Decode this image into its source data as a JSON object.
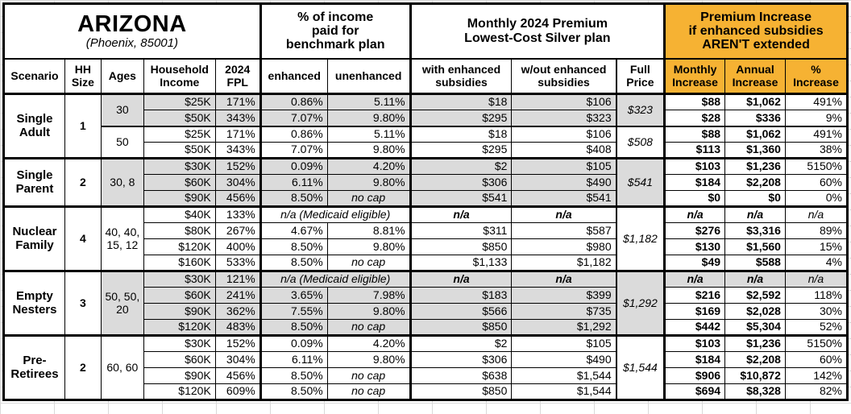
{
  "title": {
    "state": "ARIZONA",
    "location": "(Phoenix, 85001)"
  },
  "sections": {
    "benchmark": "% of income\npaid for\nbenchmark plan",
    "premium": "Monthly 2024 Premium\nLowest-Cost Silver plan",
    "increase": "Premium Increase\nif enhanced subsidies\nAREN'T extended"
  },
  "columns": {
    "scenario": "Scenario",
    "hh_size": "HH\nSize",
    "ages": "Ages",
    "income": "Household\nIncome",
    "fpl": "2024\nFPL",
    "enhanced": "enhanced",
    "unenhanced": "unenhanced",
    "with_sub": "with enhanced\nsubsidies",
    "without_sub": "w/out enhanced\nsubsidies",
    "full_price": "Full\nPrice",
    "monthly": "Monthly\nIncrease",
    "annual": "Annual\nIncrease",
    "pct": "%\nIncrease"
  },
  "colors": {
    "highlight": "#F6B233",
    "row_shade": "#DBDBDB",
    "border": "#000000"
  },
  "blocks": [
    {
      "scenario": "Single\nAdult",
      "hh_size": "1",
      "subgroups": [
        {
          "ages": "30",
          "shaded": true,
          "full_price": "$323",
          "rows": [
            {
              "income": "$25K",
              "fpl": "171%",
              "enhanced": "0.86%",
              "unenhanced": "5.11%",
              "with_sub": "$18",
              "without_sub": "$106",
              "monthly": "$88",
              "annual": "$1,062",
              "pct": "491%"
            },
            {
              "income": "$50K",
              "fpl": "343%",
              "enhanced": "7.07%",
              "unenhanced": "9.80%",
              "with_sub": "$295",
              "without_sub": "$323",
              "monthly": "$28",
              "annual": "$336",
              "pct": "9%"
            }
          ]
        },
        {
          "ages": "50",
          "shaded": false,
          "full_price": "$508",
          "rows": [
            {
              "income": "$25K",
              "fpl": "171%",
              "enhanced": "0.86%",
              "unenhanced": "5.11%",
              "with_sub": "$18",
              "without_sub": "$106",
              "monthly": "$88",
              "annual": "$1,062",
              "pct": "491%"
            },
            {
              "income": "$50K",
              "fpl": "343%",
              "enhanced": "7.07%",
              "unenhanced": "9.80%",
              "with_sub": "$295",
              "without_sub": "$408",
              "monthly": "$113",
              "annual": "$1,360",
              "pct": "38%"
            }
          ]
        }
      ]
    },
    {
      "scenario": "Single\nParent",
      "hh_size": "2",
      "subgroups": [
        {
          "ages": "30, 8",
          "shaded": true,
          "full_price": "$541",
          "rows": [
            {
              "income": "$30K",
              "fpl": "152%",
              "enhanced": "0.09%",
              "unenhanced": "4.20%",
              "with_sub": "$2",
              "without_sub": "$105",
              "monthly": "$103",
              "annual": "$1,236",
              "pct": "5150%"
            },
            {
              "income": "$60K",
              "fpl": "304%",
              "enhanced": "6.11%",
              "unenhanced": "9.80%",
              "with_sub": "$306",
              "without_sub": "$490",
              "monthly": "$184",
              "annual": "$2,208",
              "pct": "60%"
            },
            {
              "income": "$90K",
              "fpl": "456%",
              "enhanced": "8.50%",
              "unenhanced": "no cap",
              "with_sub": "$541",
              "without_sub": "$541",
              "monthly": "$0",
              "annual": "$0",
              "pct": "0%"
            }
          ]
        }
      ]
    },
    {
      "scenario": "Nuclear\nFamily",
      "hh_size": "4",
      "subgroups": [
        {
          "ages": "40, 40,\n15, 12",
          "shaded": false,
          "full_price": "$1,182",
          "rows": [
            {
              "income": "$40K",
              "fpl": "133%",
              "benchmark_note": "n/a (Medicaid eligible)",
              "with_sub": "n/a",
              "without_sub": "n/a",
              "monthly": "n/a",
              "annual": "n/a",
              "pct": "n/a"
            },
            {
              "income": "$80K",
              "fpl": "267%",
              "enhanced": "4.67%",
              "unenhanced": "8.81%",
              "with_sub": "$311",
              "without_sub": "$587",
              "monthly": "$276",
              "annual": "$3,316",
              "pct": "89%"
            },
            {
              "income": "$120K",
              "fpl": "400%",
              "enhanced": "8.50%",
              "unenhanced": "9.80%",
              "with_sub": "$850",
              "without_sub": "$980",
              "monthly": "$130",
              "annual": "$1,560",
              "pct": "15%"
            },
            {
              "income": "$160K",
              "fpl": "533%",
              "enhanced": "8.50%",
              "unenhanced": "no cap",
              "with_sub": "$1,133",
              "without_sub": "$1,182",
              "monthly": "$49",
              "annual": "$588",
              "pct": "4%"
            }
          ]
        }
      ]
    },
    {
      "scenario": "Empty\nNesters",
      "hh_size": "3",
      "subgroups": [
        {
          "ages": "50, 50,\n20",
          "shaded": true,
          "full_price": "$1,292",
          "rows": [
            {
              "income": "$30K",
              "fpl": "121%",
              "benchmark_note": "n/a (Medicaid eligible)",
              "with_sub": "n/a",
              "without_sub": "n/a",
              "monthly": "n/a",
              "annual": "n/a",
              "pct": "n/a"
            },
            {
              "income": "$60K",
              "fpl": "241%",
              "enhanced": "3.65%",
              "unenhanced": "7.98%",
              "with_sub": "$183",
              "without_sub": "$399",
              "monthly": "$216",
              "annual": "$2,592",
              "pct": "118%"
            },
            {
              "income": "$90K",
              "fpl": "362%",
              "enhanced": "7.55%",
              "unenhanced": "9.80%",
              "with_sub": "$566",
              "without_sub": "$735",
              "monthly": "$169",
              "annual": "$2,028",
              "pct": "30%"
            },
            {
              "income": "$120K",
              "fpl": "483%",
              "enhanced": "8.50%",
              "unenhanced": "no cap",
              "with_sub": "$850",
              "without_sub": "$1,292",
              "monthly": "$442",
              "annual": "$5,304",
              "pct": "52%"
            }
          ]
        }
      ]
    },
    {
      "scenario": "Pre-\nRetirees",
      "hh_size": "2",
      "subgroups": [
        {
          "ages": "60, 60",
          "shaded": false,
          "full_price": "$1,544",
          "rows": [
            {
              "income": "$30K",
              "fpl": "152%",
              "enhanced": "0.09%",
              "unenhanced": "4.20%",
              "with_sub": "$2",
              "without_sub": "$105",
              "monthly": "$103",
              "annual": "$1,236",
              "pct": "5150%"
            },
            {
              "income": "$60K",
              "fpl": "304%",
              "enhanced": "6.11%",
              "unenhanced": "9.80%",
              "with_sub": "$306",
              "without_sub": "$490",
              "monthly": "$184",
              "annual": "$2,208",
              "pct": "60%"
            },
            {
              "income": "$90K",
              "fpl": "456%",
              "enhanced": "8.50%",
              "unenhanced": "no cap",
              "with_sub": "$638",
              "without_sub": "$1,544",
              "monthly": "$906",
              "annual": "$10,872",
              "pct": "142%"
            },
            {
              "income": "$120K",
              "fpl": "609%",
              "enhanced": "8.50%",
              "unenhanced": "no cap",
              "with_sub": "$850",
              "without_sub": "$1,544",
              "monthly": "$694",
              "annual": "$8,328",
              "pct": "82%"
            }
          ]
        }
      ]
    }
  ]
}
